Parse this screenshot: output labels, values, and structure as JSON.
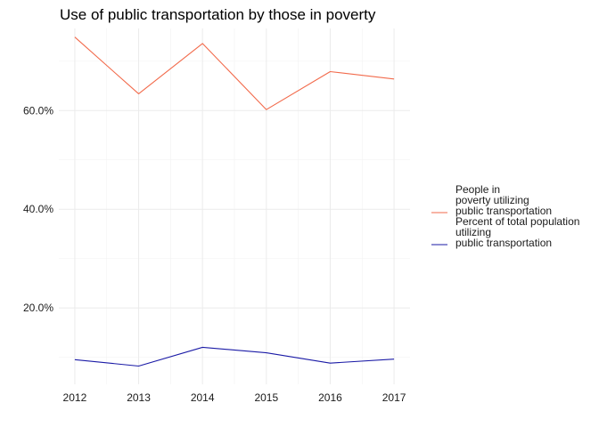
{
  "chart_data": {
    "type": "line",
    "title": "Use of public transportation by those in poverty",
    "xlabel": "",
    "ylabel": "",
    "x": [
      2012,
      2013,
      2014,
      2015,
      2016,
      2017
    ],
    "xticks": [
      "2012",
      "2013",
      "2014",
      "2015",
      "2016",
      "2017"
    ],
    "yticks": [
      {
        "value": 0.2,
        "label": "20.0%"
      },
      {
        "value": 0.4,
        "label": "40.0%"
      },
      {
        "value": 0.6,
        "label": "60.0%"
      }
    ],
    "ylim": [
      0.045,
      0.7665
    ],
    "grid": true,
    "legend_position": "right",
    "series": [
      {
        "name": "People in\npoverty utilizing\npublic transportation",
        "color": "#f26a4b",
        "values": [
          0.749,
          0.634,
          0.736,
          0.602,
          0.679,
          0.664
        ]
      },
      {
        "name": "Percent of total population\nutilizing\npublic transportation",
        "color": "#1a1aa6",
        "values": [
          0.095,
          0.082,
          0.12,
          0.109,
          0.088,
          0.096
        ]
      }
    ]
  }
}
